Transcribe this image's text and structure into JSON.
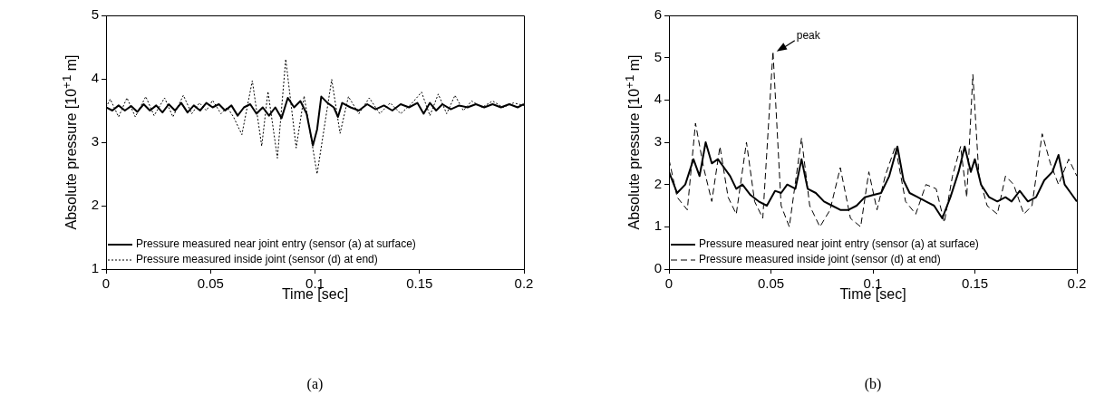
{
  "chart_data": [
    {
      "type": "line",
      "xlabel": "Time [sec]",
      "ylabel": "Absolute pressure [10$^{+1}$ m]",
      "xlim": [
        0,
        0.2
      ],
      "xticks": [
        0,
        0.05,
        0.1,
        0.15,
        0.2
      ],
      "ylim": [
        1,
        5
      ],
      "yticks": [
        1,
        2,
        3,
        4,
        5
      ],
      "legend": "bottom left",
      "annotations": [
        "(a)"
      ],
      "series": [
        {
          "name": "Pressure measured near joint entry (sensor (a) at surface)",
          "color": "#000000",
          "line_style": "solid",
          "x": [
            0,
            0.003,
            0.006,
            0.009,
            0.012,
            0.015,
            0.018,
            0.021,
            0.024,
            0.027,
            0.03,
            0.033,
            0.036,
            0.039,
            0.042,
            0.045,
            0.048,
            0.051,
            0.054,
            0.057,
            0.06,
            0.063,
            0.066,
            0.069,
            0.072,
            0.075,
            0.078,
            0.081,
            0.084,
            0.087,
            0.09,
            0.093,
            0.096,
            0.099,
            0.101,
            0.103,
            0.106,
            0.109,
            0.111,
            0.113,
            0.117,
            0.121,
            0.125,
            0.129,
            0.133,
            0.137,
            0.141,
            0.145,
            0.149,
            0.152,
            0.155,
            0.158,
            0.161,
            0.165,
            0.169,
            0.173,
            0.177,
            0.181,
            0.185,
            0.189,
            0.193,
            0.197,
            0.2
          ],
          "values": [
            3.55,
            3.5,
            3.58,
            3.5,
            3.57,
            3.48,
            3.6,
            3.5,
            3.58,
            3.47,
            3.6,
            3.5,
            3.62,
            3.47,
            3.58,
            3.5,
            3.62,
            3.55,
            3.6,
            3.5,
            3.58,
            3.42,
            3.55,
            3.6,
            3.45,
            3.55,
            3.42,
            3.55,
            3.38,
            3.7,
            3.55,
            3.65,
            3.45,
            2.95,
            3.2,
            3.72,
            3.62,
            3.55,
            3.4,
            3.62,
            3.55,
            3.5,
            3.6,
            3.52,
            3.58,
            3.5,
            3.6,
            3.55,
            3.62,
            3.45,
            3.62,
            3.5,
            3.6,
            3.52,
            3.58,
            3.55,
            3.6,
            3.55,
            3.6,
            3.55,
            3.6,
            3.55,
            3.6
          ]
        },
        {
          "name": "Pressure measured inside joint (sensor (d) at end)",
          "color": "#000000",
          "line_style": "dotted",
          "x": [
            0,
            0.002,
            0.006,
            0.01,
            0.014,
            0.019,
            0.023,
            0.028,
            0.032,
            0.037,
            0.041,
            0.0447,
            0.048,
            0.051,
            0.055,
            0.058,
            0.061,
            0.065,
            0.07,
            0.0745,
            0.0775,
            0.082,
            0.086,
            0.091,
            0.0948,
            0.101,
            0.108,
            0.112,
            0.116,
            0.121,
            0.126,
            0.131,
            0.136,
            0.141,
            0.146,
            0.151,
            0.155,
            0.159,
            0.163,
            0.167,
            0.171,
            0.175,
            0.18,
            0.185,
            0.19,
            0.195,
            0.2
          ],
          "values": [
            3.55,
            3.68,
            3.4,
            3.7,
            3.4,
            3.72,
            3.42,
            3.7,
            3.4,
            3.74,
            3.45,
            3.62,
            3.5,
            3.66,
            3.45,
            3.55,
            3.4,
            3.12,
            3.97,
            2.94,
            3.8,
            2.75,
            4.31,
            2.91,
            3.73,
            2.5,
            3.99,
            3.14,
            3.72,
            3.45,
            3.7,
            3.45,
            3.62,
            3.45,
            3.6,
            3.79,
            3.42,
            3.76,
            3.45,
            3.74,
            3.5,
            3.65,
            3.55,
            3.65,
            3.55,
            3.62,
            3.58
          ]
        }
      ]
    },
    {
      "type": "line",
      "xlabel": "Time [sec]",
      "ylabel": "Absolute pressure [10$^{+1}$ m]",
      "xlim": [
        0,
        0.2
      ],
      "xticks": [
        0,
        0.05,
        0.1,
        0.15,
        0.2
      ],
      "ylim": [
        0,
        6
      ],
      "yticks": [
        0,
        1,
        2,
        3,
        4,
        5,
        6
      ],
      "legend": "bottom left",
      "annotations": [
        "(b)",
        {
          "text": "peak",
          "x": 0.051,
          "y": 5.15
        }
      ],
      "series": [
        {
          "name": "Pressure measured near joint entry (sensor (a) at surface)",
          "color": "#000000",
          "line_style": "solid",
          "x": [
            0,
            0.004,
            0.008,
            0.012,
            0.015,
            0.018,
            0.021,
            0.024,
            0.027,
            0.03,
            0.033,
            0.036,
            0.04,
            0.044,
            0.048,
            0.052,
            0.055,
            0.058,
            0.062,
            0.065,
            0.068,
            0.072,
            0.076,
            0.08,
            0.084,
            0.088,
            0.092,
            0.096,
            0.1,
            0.104,
            0.108,
            0.112,
            0.115,
            0.118,
            0.122,
            0.126,
            0.13,
            0.134,
            0.138,
            0.142,
            0.145,
            0.148,
            0.15,
            0.153,
            0.157,
            0.161,
            0.165,
            0.168,
            0.172,
            0.176,
            0.18,
            0.184,
            0.188,
            0.191,
            0.194,
            0.197,
            0.2
          ],
          "values": [
            2.3,
            1.8,
            2.0,
            2.6,
            2.2,
            3.0,
            2.5,
            2.6,
            2.4,
            2.2,
            1.9,
            2.0,
            1.75,
            1.6,
            1.5,
            1.85,
            1.8,
            2.0,
            1.9,
            2.6,
            1.9,
            1.8,
            1.6,
            1.5,
            1.4,
            1.4,
            1.5,
            1.7,
            1.75,
            1.8,
            2.2,
            2.9,
            2.1,
            1.8,
            1.7,
            1.6,
            1.5,
            1.2,
            1.7,
            2.3,
            2.9,
            2.3,
            2.6,
            2.0,
            1.7,
            1.6,
            1.7,
            1.6,
            1.85,
            1.6,
            1.7,
            2.1,
            2.3,
            2.7,
            2.0,
            1.8,
            1.6
          ]
        },
        {
          "name": "Pressure measured inside joint (sensor (d) at end)",
          "color": "#000000",
          "line_style": "dashed",
          "x": [
            0,
            0.004,
            0.009,
            0.013,
            0.017,
            0.021,
            0.025,
            0.029,
            0.033,
            0.038,
            0.042,
            0.046,
            0.051,
            0.055,
            0.059,
            0.065,
            0.069,
            0.074,
            0.079,
            0.084,
            0.089,
            0.094,
            0.098,
            0.102,
            0.106,
            0.111,
            0.116,
            0.121,
            0.126,
            0.131,
            0.135,
            0.139,
            0.143,
            0.146,
            0.149,
            0.152,
            0.156,
            0.161,
            0.165,
            0.169,
            0.174,
            0.178,
            0.183,
            0.187,
            0.191,
            0.196,
            0.2
          ],
          "values": [
            2.6,
            1.7,
            1.4,
            3.45,
            2.4,
            1.6,
            2.9,
            1.7,
            1.3,
            3.0,
            1.6,
            1.2,
            5.15,
            1.5,
            1.0,
            3.1,
            1.5,
            1.0,
            1.4,
            2.4,
            1.2,
            1.0,
            2.3,
            1.4,
            2.2,
            2.9,
            1.6,
            1.3,
            2.0,
            1.9,
            1.1,
            2.2,
            2.9,
            1.7,
            4.6,
            2.2,
            1.5,
            1.3,
            2.2,
            2.0,
            1.3,
            1.5,
            3.2,
            2.5,
            2.0,
            2.6,
            2.2
          ]
        }
      ]
    }
  ]
}
